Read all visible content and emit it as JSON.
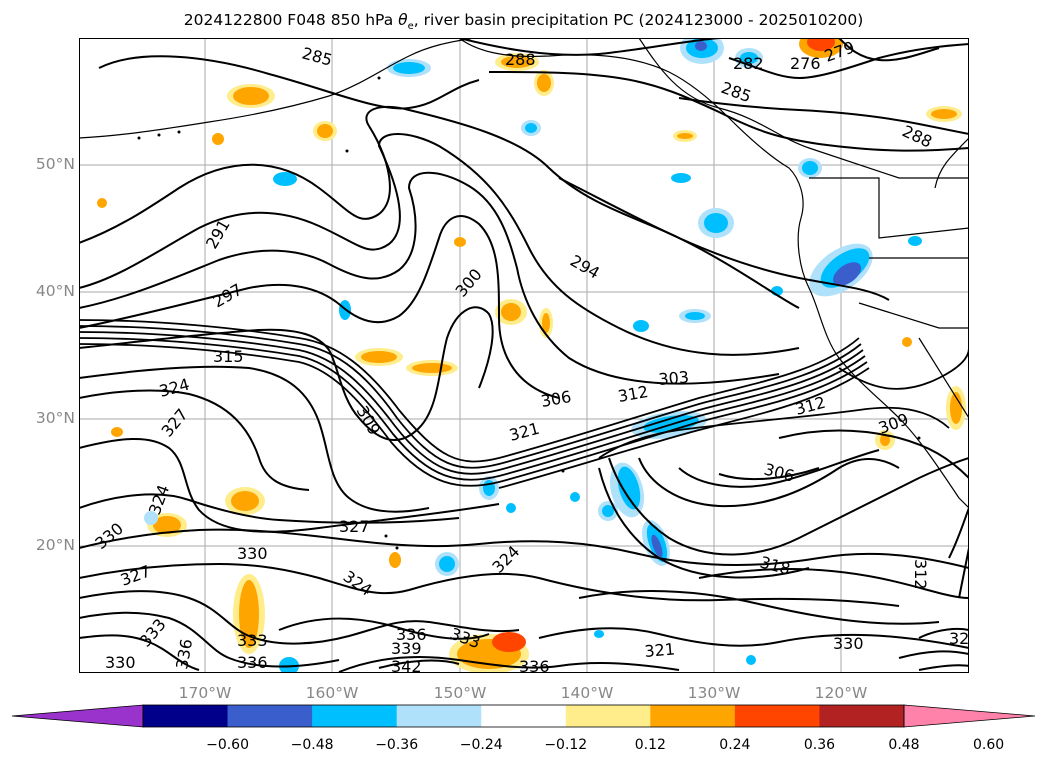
{
  "title": {
    "run": "2024122800 F048 850 hPa ",
    "theta": "θ",
    "sub": "e",
    "rest": ", river basin precipitation PC (2024123000 - 2025010200)"
  },
  "axes": {
    "lat_labels": [
      "50°N",
      "40°N",
      "30°N",
      "20°N"
    ],
    "lon_labels": [
      "170°W",
      "160°W",
      "150°W",
      "140°W",
      "130°W",
      "120°W"
    ]
  },
  "contour_labels": [
    "285",
    "288",
    "282",
    "276",
    "279",
    "285",
    "288",
    "291",
    "294",
    "297",
    "300",
    "303",
    "306",
    "309",
    "312",
    "312",
    "315",
    "318",
    "321",
    "321",
    "324",
    "324",
    "324",
    "324",
    "327",
    "327",
    "327",
    "330",
    "330",
    "330",
    "330",
    "333",
    "333",
    "333",
    "336",
    "336",
    "336",
    "336",
    "339",
    "342",
    "309",
    "306",
    "312",
    "32"
  ],
  "colorbar": {
    "ticks": [
      "−0.60",
      "−0.48",
      "−0.36",
      "−0.24",
      "−0.12",
      "0.12",
      "0.24",
      "0.36",
      "0.48",
      "0.60"
    ],
    "colors": [
      "#9933cc",
      "#00008b",
      "#3a5fcd",
      "#00bfff",
      "#afe1fb",
      "#ffffff",
      "#ffec8b",
      "#ffa500",
      "#ff4500",
      "#b22222",
      "#ff82ab"
    ],
    "under_color": "#9933cc",
    "over_color": "#ff82ab"
  }
}
